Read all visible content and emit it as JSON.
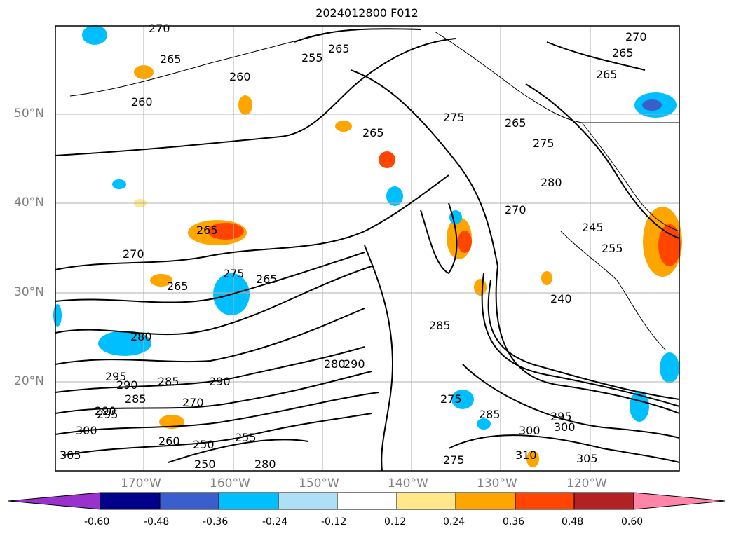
{
  "title": "2024012800 F012",
  "lat_labels": [
    "50°N",
    "40°N",
    "30°N",
    "20°N"
  ],
  "lon_labels": [
    "170°W",
    "160°W",
    "150°W",
    "140°W",
    "130°W",
    "120°W"
  ],
  "colorbar": {
    "ticks": [
      "-0.60",
      "-0.48",
      "-0.36",
      "-0.24",
      "-0.12",
      "0.12",
      "0.24",
      "0.36",
      "0.48",
      "0.60"
    ],
    "colors": [
      "#9932CC",
      "#00008B",
      "#3A5FCD",
      "#00BFFF",
      "#ADDFF7",
      "#FFFFFF",
      "#FFE78A",
      "#FFA500",
      "#FF4500",
      "#B22222",
      "#FF85A8"
    ]
  },
  "contour_labels": [
    "270",
    "265",
    "255",
    "265",
    "260",
    "260",
    "275",
    "265",
    "270",
    "265",
    "265",
    "280",
    "270",
    "265",
    "255",
    "240",
    "280",
    "275",
    "265",
    "250",
    "285",
    "275",
    "285",
    "290",
    "295",
    "290",
    "285",
    "290",
    "295",
    "300",
    "305",
    "260",
    "250",
    "255",
    "280",
    "300",
    "310",
    "305",
    "275",
    "285",
    "295",
    "300",
    "265",
    "265",
    "290",
    "270",
    "270",
    "275",
    "245",
    "280"
  ]
}
